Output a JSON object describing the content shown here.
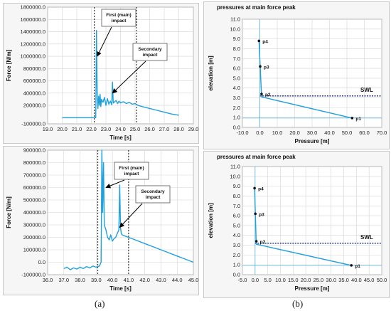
{
  "captions": {
    "a": "(a)",
    "b": "(b)"
  },
  "colors": {
    "series": "#1ea0dc",
    "swl": "#1c2a80",
    "marker": "#111111",
    "plot_bg": "#ffffff",
    "panel_bg": "#f6f6f6",
    "grid": "#d4d4d4"
  },
  "chart_data": [
    {
      "id": "force-top",
      "type": "line",
      "xlabel": "Time [s]",
      "ylabel": "Force [N/m]",
      "xlim": [
        19.0,
        29.0
      ],
      "ylim": [
        -100000.0,
        1800000.0
      ],
      "xticks": [
        "19.0",
        "20.0",
        "21.0",
        "22.0",
        "23.0",
        "24.0",
        "25.0",
        "26.0",
        "27.0",
        "28.0",
        "29.0"
      ],
      "xtick_values": [
        19,
        20,
        21,
        22,
        23,
        24,
        25,
        26,
        27,
        28,
        29
      ],
      "yticks": [
        "-100000.0",
        "200000.0",
        "400000.0",
        "600000.0",
        "800000.0",
        "1000000.0",
        "1200000.0",
        "1400000.0",
        "1600000.0",
        "1800000.0"
      ],
      "ytick_values": [
        -100000,
        200000,
        400000,
        600000,
        800000,
        1000000,
        1200000,
        1400000,
        1600000,
        1800000
      ],
      "vlines": [
        22.2,
        25.1
      ],
      "series": [
        {
          "x": [
            20.0,
            21.0,
            22.0,
            22.3,
            22.35,
            22.4,
            22.45,
            22.5,
            22.55,
            22.6,
            22.65,
            22.7,
            22.8,
            22.9,
            23.0,
            23.1,
            23.2,
            23.3,
            23.4,
            23.45,
            23.5,
            23.6,
            23.7,
            23.8,
            23.9,
            24.0,
            24.2,
            24.4,
            24.6,
            24.8,
            25.0,
            25.2,
            25.5,
            26.0,
            26.5,
            27.0,
            27.5,
            28.0
          ],
          "y": [
            0,
            0,
            0,
            0,
            1420000,
            400000,
            150000,
            350000,
            200000,
            380000,
            180000,
            300000,
            250000,
            330000,
            200000,
            310000,
            220000,
            270000,
            210000,
            580000,
            240000,
            260000,
            280000,
            230000,
            270000,
            240000,
            260000,
            230000,
            250000,
            220000,
            230000,
            200000,
            180000,
            150000,
            120000,
            90000,
            60000,
            40000
          ]
        }
      ],
      "annotations": [
        {
          "text": "First (main) impact",
          "point": [
            22.4,
            1000000
          ]
        },
        {
          "text": "Secondary impact",
          "point": [
            23.45,
            400000
          ]
        }
      ]
    },
    {
      "id": "force-bottom",
      "type": "line",
      "xlabel": "Time [s]",
      "ylabel": "Force [N/m]",
      "xlim": [
        36.0,
        45.0
      ],
      "ylim": [
        -100000.0,
        900000.0
      ],
      "xticks": [
        "36.0",
        "37.0",
        "38.0",
        "39.0",
        "40.0",
        "41.0",
        "42.0",
        "43.0",
        "44.0",
        "45.0"
      ],
      "xtick_values": [
        36,
        37,
        38,
        39,
        40,
        41,
        42,
        43,
        44,
        45
      ],
      "yticks": [
        "-100000.0",
        "0.0",
        "100000.0",
        "200000.0",
        "300000.0",
        "400000.0",
        "500000.0",
        "600000.0",
        "700000.0",
        "800000.0",
        "900000.0"
      ],
      "ytick_values": [
        -100000,
        0,
        100000,
        200000,
        300000,
        400000,
        500000,
        600000,
        700000,
        800000,
        900000
      ],
      "vlines": [
        39.1,
        41.0
      ],
      "series": [
        {
          "x": [
            37.0,
            37.2,
            37.4,
            37.6,
            37.8,
            38.0,
            38.2,
            38.4,
            38.6,
            38.8,
            39.0,
            39.2,
            39.3,
            39.35,
            39.4,
            39.45,
            39.5,
            39.6,
            39.7,
            39.8,
            39.9,
            40.0,
            40.1,
            40.2,
            40.3,
            40.4,
            40.45,
            40.5,
            40.55,
            40.6,
            40.8,
            41.0,
            41.5,
            42.0,
            42.5,
            43.0,
            43.5,
            44.0,
            44.5,
            45.0
          ],
          "y": [
            -50000,
            -40000,
            -60000,
            -45000,
            -55000,
            -40000,
            -50000,
            -35000,
            -45000,
            -30000,
            -40000,
            -30000,
            0,
            900000,
            400000,
            800000,
            300000,
            260000,
            200000,
            180000,
            220000,
            170000,
            190000,
            200000,
            230000,
            260000,
            620000,
            280000,
            230000,
            220000,
            210000,
            200000,
            175000,
            150000,
            125000,
            100000,
            75000,
            50000,
            25000,
            0
          ]
        }
      ],
      "annotations": [
        {
          "text": "First (main) impact",
          "point": [
            39.6,
            600000
          ]
        },
        {
          "text": "Secondary impact",
          "point": [
            40.45,
            280000
          ]
        }
      ]
    },
    {
      "id": "pressure-top",
      "type": "line",
      "title": "pressures at main force peak",
      "xlabel": "Pressure [m]",
      "ylabel": "elevation [m]",
      "xlim": [
        -10.0,
        70.0
      ],
      "ylim": [
        0.0,
        11.0
      ],
      "xticks": [
        "-10.0",
        "0.0",
        "10.0",
        "20.0",
        "30.0",
        "40.0",
        "50.0",
        "60.0",
        "70.0"
      ],
      "xtick_values": [
        -10,
        0,
        10,
        20,
        30,
        40,
        50,
        60,
        70
      ],
      "yticks": [
        "0.0",
        "1.0",
        "2.0",
        "3.0",
        "4.0",
        "5.0",
        "6.0",
        "7.0",
        "8.0",
        "9.0",
        "10.0",
        "11.0"
      ],
      "ytick_values": [
        0,
        1,
        2,
        3,
        4,
        5,
        6,
        7,
        8,
        9,
        10,
        11
      ],
      "swl": {
        "label": "SWL",
        "y": 3.2
      },
      "reference_line": {
        "y": 0.95
      },
      "series": [
        {
          "x": [
            -0.5,
            0.2,
            0.8,
            1.0,
            53.0
          ],
          "y": [
            8.8,
            6.2,
            3.8,
            3.1,
            0.95
          ]
        }
      ],
      "points": [
        {
          "label": "p4",
          "x": -0.5,
          "y": 8.8
        },
        {
          "label": "p3",
          "x": 0.2,
          "y": 6.2
        },
        {
          "label": "p2",
          "x": 1.0,
          "y": 3.4
        },
        {
          "label": "p1",
          "x": 53.0,
          "y": 0.95
        }
      ]
    },
    {
      "id": "pressure-bottom",
      "type": "line",
      "title": "pressures at main force peak",
      "xlabel": "Pressure [m]",
      "ylabel": "elevation [m]",
      "xlim": [
        -5.0,
        50.0
      ],
      "ylim": [
        0.0,
        11.0
      ],
      "xticks": [
        "-5.0",
        "0.0",
        "5.0",
        "10.0",
        "15.0",
        "20.0",
        "25.0",
        "30.0",
        "35.0",
        "40.0",
        "45.0",
        "50.0"
      ],
      "xtick_values": [
        -5,
        0,
        5,
        10,
        15,
        20,
        25,
        30,
        35,
        40,
        45,
        50
      ],
      "yticks": [
        "0.0",
        "1.0",
        "2.0",
        "3.0",
        "4.0",
        "5.0",
        "6.0",
        "7.0",
        "8.0",
        "9.0",
        "10.0",
        "11.0"
      ],
      "ytick_values": [
        0,
        1,
        2,
        3,
        4,
        5,
        6,
        7,
        8,
        9,
        10,
        11
      ],
      "swl": {
        "label": "SWL",
        "y": 3.2
      },
      "reference_line": {
        "y": 0.95
      },
      "series": [
        {
          "x": [
            -0.2,
            0.1,
            0.4,
            0.5,
            38.0
          ],
          "y": [
            8.8,
            6.2,
            3.7,
            3.1,
            0.95
          ]
        }
      ],
      "points": [
        {
          "label": "p4",
          "x": -0.2,
          "y": 8.8
        },
        {
          "label": "p3",
          "x": 0.1,
          "y": 6.2
        },
        {
          "label": "p2",
          "x": 0.5,
          "y": 3.4
        },
        {
          "label": "p1",
          "x": 38.0,
          "y": 0.95
        }
      ]
    }
  ]
}
